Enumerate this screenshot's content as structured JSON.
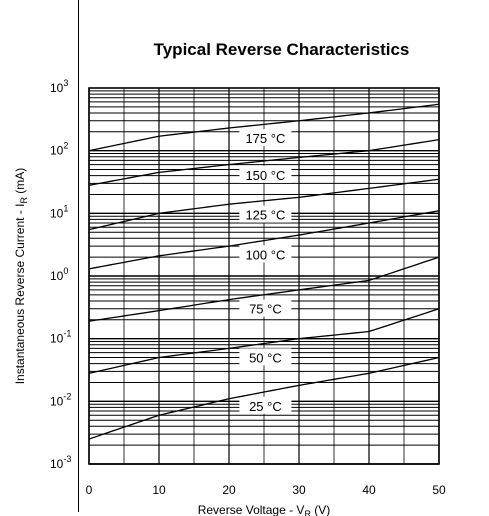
{
  "chart_data": {
    "type": "line",
    "title": "Typical Reverse Characteristics",
    "xlabel": {
      "main": "Reverse Voltage - V",
      "sub": "R",
      "unit": " (V)"
    },
    "ylabel": {
      "main": "Instantaneous Reverse Current - I",
      "sub": "R",
      "unit": " (mA)"
    },
    "x_ticks": [
      0,
      10,
      20,
      30,
      40,
      50
    ],
    "y_ticks": [
      {
        "base": "10",
        "exp": "-3",
        "value": 0.001
      },
      {
        "base": "10",
        "exp": "-2",
        "value": 0.01
      },
      {
        "base": "10",
        "exp": "-1",
        "value": 0.1
      },
      {
        "base": "10",
        "exp": "0",
        "value": 1
      },
      {
        "base": "10",
        "exp": "1",
        "value": 10
      },
      {
        "base": "10",
        "exp": "2",
        "value": 100
      },
      {
        "base": "10",
        "exp": "3",
        "value": 1000
      }
    ],
    "xlim": [
      0,
      50
    ],
    "ylim": [
      0.001,
      1000
    ],
    "yscale": "log",
    "grid": true,
    "series": [
      {
        "name": "175 °C",
        "x": [
          0,
          10,
          20,
          30,
          40,
          50
        ],
        "y": [
          100,
          170,
          230,
          300,
          400,
          550
        ]
      },
      {
        "name": "150 °C",
        "x": [
          0,
          10,
          20,
          30,
          40,
          50
        ],
        "y": [
          28,
          45,
          60,
          78,
          100,
          150
        ]
      },
      {
        "name": "125 °C",
        "x": [
          0,
          10,
          20,
          30,
          40,
          50
        ],
        "y": [
          5.5,
          10,
          14,
          18,
          25,
          35
        ]
      },
      {
        "name": "100 °C",
        "x": [
          0,
          10,
          20,
          30,
          40,
          50
        ],
        "y": [
          1.3,
          2.1,
          3.0,
          4.5,
          7,
          11
        ]
      },
      {
        "name": "75 °C",
        "x": [
          0,
          10,
          20,
          30,
          40,
          50
        ],
        "y": [
          0.19,
          0.28,
          0.42,
          0.6,
          0.85,
          2.0
        ]
      },
      {
        "name": "50 °C",
        "x": [
          0,
          10,
          20,
          30,
          40,
          50
        ],
        "y": [
          0.028,
          0.05,
          0.07,
          0.1,
          0.13,
          0.3
        ]
      },
      {
        "name": "25 °C",
        "x": [
          0,
          10,
          20,
          30,
          40,
          50
        ],
        "y": [
          0.0025,
          0.006,
          0.011,
          0.018,
          0.028,
          0.05
        ]
      }
    ]
  }
}
